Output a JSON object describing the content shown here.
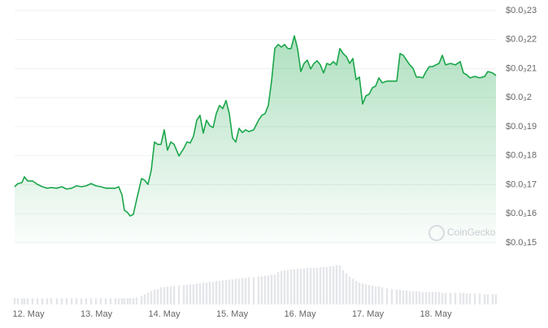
{
  "chart_data": {
    "type": "line",
    "color": "#1aa64a",
    "volume_color": "#e4e6ea",
    "grid": true,
    "watermark": "CoinGecko",
    "xlim": [
      11.796,
      18.886
    ],
    "xticks": [
      {
        "value": 12,
        "label": "12. May"
      },
      {
        "value": 13,
        "label": "13. May"
      },
      {
        "value": 14,
        "label": "14. May"
      },
      {
        "value": 15,
        "label": "15. May"
      },
      {
        "value": 16,
        "label": "16. May"
      },
      {
        "value": 17,
        "label": "17. May"
      },
      {
        "value": 18,
        "label": "18. May"
      }
    ],
    "ylim": [
      0.00015,
      0.00023
    ],
    "yticks": [
      {
        "value": 0.00023,
        "label": "$0.0₃23"
      },
      {
        "value": 0.00022,
        "label": "$0.0₃22"
      },
      {
        "value": 0.00021,
        "label": "$0.0₃21"
      },
      {
        "value": 0.0002,
        "label": "$0.0₃2"
      },
      {
        "value": 0.00019,
        "label": "$0.0₃19"
      },
      {
        "value": 0.00018,
        "label": "$0.0₃18"
      },
      {
        "value": 0.00017,
        "label": "$0.0₃17"
      },
      {
        "value": 0.00016,
        "label": "$0.0₃16"
      },
      {
        "value": 0.00015,
        "label": "$0.0₃15"
      }
    ],
    "x": [
      11.796,
      11.844,
      11.904,
      11.94,
      11.988,
      12.06,
      12.132,
      12.204,
      12.275,
      12.335,
      12.419,
      12.491,
      12.563,
      12.635,
      12.707,
      12.778,
      12.85,
      12.922,
      12.994,
      13.066,
      13.138,
      13.21,
      13.281,
      13.329,
      13.377,
      13.413,
      13.461,
      13.497,
      13.545,
      13.593,
      13.665,
      13.713,
      13.76,
      13.808,
      13.856,
      13.904,
      13.952,
      14.0,
      14.048,
      14.096,
      14.144,
      14.216,
      14.287,
      14.335,
      14.383,
      14.431,
      14.479,
      14.527,
      14.575,
      14.623,
      14.671,
      14.719,
      14.766,
      14.814,
      14.862,
      14.91,
      14.958,
      15.006,
      15.054,
      15.102,
      15.15,
      15.198,
      15.246,
      15.317,
      15.389,
      15.437,
      15.485,
      15.533,
      15.581,
      15.629,
      15.677,
      15.725,
      15.772,
      15.82,
      15.868,
      15.916,
      15.964,
      16.012,
      16.06,
      16.108,
      16.156,
      16.204,
      16.251,
      16.299,
      16.347,
      16.395,
      16.443,
      16.491,
      16.539,
      16.587,
      16.635,
      16.683,
      16.731,
      16.778,
      16.826,
      16.874,
      16.922,
      16.97,
      17.018,
      17.066,
      17.114,
      17.162,
      17.21,
      17.281,
      17.353,
      17.425,
      17.473,
      17.521,
      17.569,
      17.617,
      17.665,
      17.713,
      17.76,
      17.808,
      17.856,
      17.904,
      17.952,
      18.0,
      18.048,
      18.096,
      18.144,
      18.216,
      18.287,
      18.359,
      18.407,
      18.455,
      18.503,
      18.575,
      18.647,
      18.719,
      18.766,
      18.838,
      18.886
    ],
    "values": [
      0.0001693,
      0.0001704,
      0.0001707,
      0.0001727,
      0.0001713,
      0.0001713,
      0.0001701,
      0.0001693,
      0.0001688,
      0.000169,
      0.0001688,
      0.0001693,
      0.0001685,
      0.0001688,
      0.0001696,
      0.0001693,
      0.0001696,
      0.0001704,
      0.0001696,
      0.0001693,
      0.0001688,
      0.0001688,
      0.0001688,
      0.0001693,
      0.0001665,
      0.0001612,
      0.0001604,
      0.0001592,
      0.0001598,
      0.0001648,
      0.0001721,
      0.0001715,
      0.0001701,
      0.0001749,
      0.0001847,
      0.0001839,
      0.0001839,
      0.0001889,
      0.0001819,
      0.0001847,
      0.0001839,
      0.0001799,
      0.0001825,
      0.0001847,
      0.0001844,
      0.0001867,
      0.0001922,
      0.0001939,
      0.0001878,
      0.0001922,
      0.0001903,
      0.0001897,
      0.0001945,
      0.0001973,
      0.0001962,
      0.000199,
      0.0001945,
      0.0001861,
      0.0001847,
      0.0001894,
      0.000188,
      0.0001889,
      0.0001883,
      0.0001889,
      0.0001922,
      0.0001939,
      0.0001945,
      0.0001973,
      0.0002057,
      0.0002169,
      0.0002183,
      0.0002174,
      0.0002183,
      0.0002169,
      0.0002169,
      0.0002213,
      0.0002169,
      0.000209,
      0.0002118,
      0.0002129,
      0.0002099,
      0.0002118,
      0.0002127,
      0.0002113,
      0.0002085,
      0.0002118,
      0.0002113,
      0.0002124,
      0.0002113,
      0.0002169,
      0.0002152,
      0.0002141,
      0.0002118,
      0.0002135,
      0.0002062,
      0.0002071,
      0.0001978,
      0.0002006,
      0.0002012,
      0.0002034,
      0.000204,
      0.0002068,
      0.0002051,
      0.0002057,
      0.0002057,
      0.0002057,
      0.0002152,
      0.0002146,
      0.0002129,
      0.0002113,
      0.0002101,
      0.0002071,
      0.0002071,
      0.0002068,
      0.000209,
      0.0002107,
      0.0002107,
      0.0002113,
      0.0002118,
      0.0002146,
      0.0002113,
      0.0002118,
      0.0002113,
      0.0002124,
      0.0002085,
      0.0002079,
      0.0002068,
      0.0002073,
      0.0002068,
      0.0002073,
      0.000209,
      0.0002085,
      0.0002076
    ],
    "volume": [
      8,
      8,
      8,
      8,
      8,
      8,
      8,
      8,
      8,
      8,
      8,
      8,
      8,
      8,
      8,
      8,
      8,
      8,
      8,
      8,
      8,
      8,
      8,
      8,
      8,
      8,
      8,
      8,
      8,
      9,
      11,
      13,
      15,
      17,
      19,
      20,
      22,
      22,
      23,
      23,
      24,
      24,
      25,
      25,
      26,
      26,
      27,
      27,
      28,
      28,
      29,
      29,
      30,
      30,
      31,
      31,
      32,
      32,
      33,
      33,
      34,
      34,
      35,
      35,
      36,
      36,
      37,
      37,
      38,
      38,
      42,
      43,
      44,
      44,
      45,
      45,
      46,
      46,
      46,
      47,
      47,
      47,
      47,
      48,
      48,
      48,
      49,
      49,
      50,
      50,
      44,
      40,
      36,
      33,
      30,
      28,
      27,
      26,
      25,
      24,
      23,
      23,
      22,
      21,
      20,
      19,
      19,
      18,
      18,
      17,
      17,
      17,
      17,
      16,
      16,
      16,
      16,
      16,
      16,
      15,
      15,
      15,
      15,
      15,
      15,
      14,
      14,
      14,
      14,
      13,
      13,
      13,
      13
    ]
  }
}
